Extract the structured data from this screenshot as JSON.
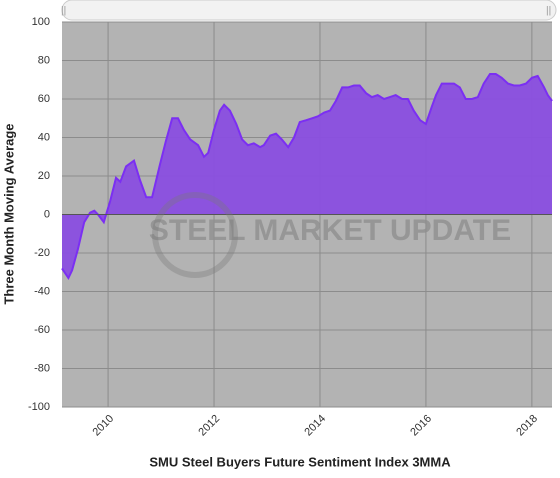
{
  "chart_data": {
    "type": "area",
    "watermark": "STEEL MARKET UPDATE",
    "x_label": "SMU Steel Buyers Future Sentiment Index 3MMA",
    "y_label": "Three Month Moving Average",
    "x": [
      2009.13,
      2009.25,
      2009.32,
      2009.43,
      2009.55,
      2009.66,
      2009.74,
      2009.81,
      2009.92,
      2010.04,
      2010.15,
      2010.23,
      2010.34,
      2010.49,
      2010.6,
      2010.72,
      2010.83,
      2010.98,
      2011.09,
      2011.21,
      2011.32,
      2011.43,
      2011.55,
      2011.7,
      2011.81,
      2011.89,
      2012.0,
      2012.11,
      2012.19,
      2012.3,
      2012.42,
      2012.53,
      2012.64,
      2012.75,
      2012.87,
      2012.94,
      2013.06,
      2013.17,
      2013.28,
      2013.4,
      2013.51,
      2013.62,
      2013.74,
      2013.85,
      2013.96,
      2014.08,
      2014.19,
      2014.3,
      2014.42,
      2014.53,
      2014.64,
      2014.75,
      2014.87,
      2014.98,
      2015.09,
      2015.21,
      2015.32,
      2015.43,
      2015.55,
      2015.66,
      2015.77,
      2015.89,
      2016.0,
      2016.11,
      2016.19,
      2016.3,
      2016.42,
      2016.53,
      2016.64,
      2016.75,
      2016.87,
      2016.98,
      2017.09,
      2017.21,
      2017.32,
      2017.43,
      2017.55,
      2017.66,
      2017.77,
      2017.89,
      2018.0,
      2018.11,
      2018.23,
      2018.3,
      2018.38
    ],
    "series": [
      {
        "name": "SMU Steel Buyers Future Sentiment Index 3MMA",
        "color": "#7b2ff2",
        "fill": "#8a4ee0",
        "values": [
          -28,
          -33,
          -29,
          -18,
          -4,
          1,
          2,
          0,
          -4,
          7,
          19,
          17,
          25,
          28,
          18,
          9,
          9,
          26,
          38,
          50,
          50,
          44,
          39,
          36,
          30,
          32,
          44,
          54,
          57,
          54,
          47,
          39,
          36,
          37,
          35,
          36,
          41,
          42,
          39,
          35,
          40,
          48,
          49,
          50,
          51,
          53,
          54,
          59,
          66,
          66,
          67,
          67,
          63,
          61,
          62,
          60,
          61,
          62,
          60,
          60,
          54,
          49,
          47,
          56,
          62,
          68,
          68,
          68,
          66,
          60,
          60,
          61,
          68,
          73,
          73,
          71,
          68,
          67,
          67,
          68,
          71,
          72,
          66,
          62,
          59
        ]
      }
    ],
    "xlim": [
      2009.13,
      2018.38
    ],
    "xticks": [
      2010,
      2012,
      2014,
      2016,
      2018
    ],
    "ylim": [
      -100,
      100
    ],
    "yticks": [
      -100,
      -80,
      -60,
      -40,
      -20,
      0,
      20,
      40,
      60,
      80,
      100
    ],
    "grid": true,
    "background": "#b3b3b3"
  }
}
